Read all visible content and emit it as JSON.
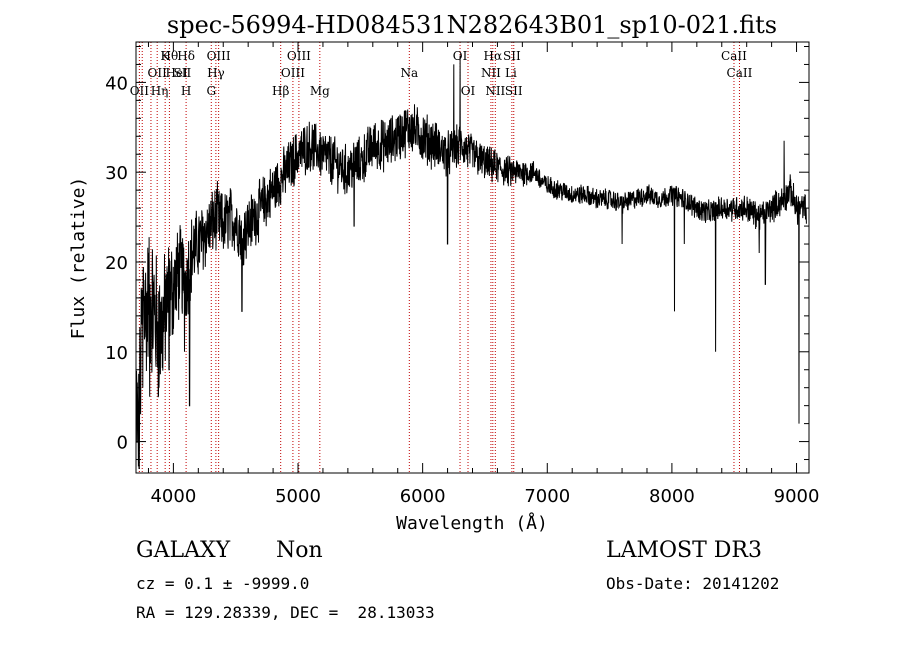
{
  "chart_data": {
    "type": "line",
    "title": "spec-56994-HD084531N282643B01_sp10-021.fits",
    "xlabel": "Wavelength (Å)",
    "ylabel": "Flux (relative)",
    "xlim": [
      3700,
      9100
    ],
    "ylim": [
      -3.5,
      44.5
    ],
    "xticks": [
      4000,
      5000,
      6000,
      7000,
      8000,
      9000
    ],
    "yticks": [
      0,
      10,
      20,
      30,
      40
    ],
    "grid": false,
    "line_color": "#000000",
    "marker_color": "#c00000",
    "anchors": [
      [
        3700,
        5
      ],
      [
        3720,
        0
      ],
      [
        3740,
        10
      ],
      [
        3760,
        18
      ],
      [
        3780,
        14
      ],
      [
        3800,
        16
      ],
      [
        3840,
        15
      ],
      [
        3880,
        12
      ],
      [
        3920,
        13
      ],
      [
        3960,
        16
      ],
      [
        4000,
        17
      ],
      [
        4050,
        19
      ],
      [
        4100,
        18
      ],
      [
        4150,
        21
      ],
      [
        4200,
        22
      ],
      [
        4250,
        23
      ],
      [
        4300,
        24
      ],
      [
        4350,
        25
      ],
      [
        4400,
        24
      ],
      [
        4450,
        25
      ],
      [
        4500,
        24.5
      ],
      [
        4550,
        23
      ],
      [
        4600,
        24
      ],
      [
        4650,
        25
      ],
      [
        4700,
        26
      ],
      [
        4750,
        27
      ],
      [
        4800,
        28
      ],
      [
        4850,
        29
      ],
      [
        4900,
        30
      ],
      [
        4950,
        31
      ],
      [
        5000,
        32
      ],
      [
        5100,
        33
      ],
      [
        5200,
        32
      ],
      [
        5300,
        31
      ],
      [
        5400,
        30
      ],
      [
        5450,
        31
      ],
      [
        5500,
        31
      ],
      [
        5600,
        33
      ],
      [
        5700,
        33
      ],
      [
        5800,
        34
      ],
      [
        5900,
        35
      ],
      [
        6000,
        34
      ],
      [
        6100,
        33
      ],
      [
        6200,
        32
      ],
      [
        6300,
        33
      ],
      [
        6400,
        32
      ],
      [
        6500,
        31
      ],
      [
        6600,
        30.5
      ],
      [
        6700,
        30
      ],
      [
        6800,
        30
      ],
      [
        6900,
        30
      ],
      [
        6950,
        29
      ],
      [
        7000,
        28.5
      ],
      [
        7100,
        28
      ],
      [
        7200,
        27.5
      ],
      [
        7300,
        27.5
      ],
      [
        7400,
        27
      ],
      [
        7500,
        27
      ],
      [
        7600,
        26.5
      ],
      [
        7700,
        27
      ],
      [
        7800,
        27.5
      ],
      [
        7900,
        27
      ],
      [
        8000,
        27.5
      ],
      [
        8100,
        27
      ],
      [
        8200,
        26
      ],
      [
        8300,
        25.5
      ],
      [
        8400,
        26
      ],
      [
        8500,
        26
      ],
      [
        8600,
        26
      ],
      [
        8700,
        25
      ],
      [
        8800,
        26
      ],
      [
        8900,
        27
      ],
      [
        8950,
        28
      ],
      [
        9000,
        26
      ]
    ],
    "noise": [
      [
        3700,
        7
      ],
      [
        3900,
        7
      ],
      [
        4000,
        5
      ],
      [
        4200,
        3.5
      ],
      [
        4500,
        3
      ],
      [
        5000,
        2.5
      ],
      [
        6000,
        2.5
      ],
      [
        6700,
        1.5
      ],
      [
        7000,
        1
      ],
      [
        8000,
        1
      ],
      [
        9000,
        1.5
      ]
    ],
    "spikes": [
      [
        3725,
        -3
      ],
      [
        3755,
        6
      ],
      [
        3810,
        5
      ],
      [
        3885,
        6
      ],
      [
        3935,
        9
      ],
      [
        3965,
        8
      ],
      [
        4090,
        10
      ],
      [
        4130,
        4
      ],
      [
        4550,
        14.5
      ],
      [
        5450,
        24
      ],
      [
        6250,
        42
      ],
      [
        6300,
        43
      ],
      [
        6200,
        22
      ],
      [
        7600,
        22
      ],
      [
        8020,
        14.5
      ],
      [
        8100,
        22
      ],
      [
        8350,
        10
      ],
      [
        8700,
        21
      ],
      [
        8750,
        17.5
      ],
      [
        8900,
        33.5
      ],
      [
        9020,
        2
      ]
    ],
    "emission_lines": [
      {
        "x": 3727,
        "label": "OII",
        "row": 2
      },
      {
        "x": 3870,
        "label": "OII",
        "row": 1
      },
      {
        "x": 3889,
        "label": "Hη",
        "row": 2
      },
      {
        "x": 3934,
        "label": "K",
        "row": 0
      },
      {
        "x": 3968,
        "label": "Hθ",
        "row": 0
      },
      {
        "x": 4026,
        "label": "HeI",
        "row": 1
      },
      {
        "x": 4102,
        "label": "Hδ",
        "row": 0
      },
      {
        "x": 4072,
        "label": "SII",
        "row": 1
      },
      {
        "x": 4102,
        "label": "H",
        "row": 2
      },
      {
        "x": 4341,
        "label": "Hγ",
        "row": 1
      },
      {
        "x": 4363,
        "label": "OIII",
        "row": 0
      },
      {
        "x": 4304,
        "label": "G",
        "row": 2
      },
      {
        "x": 4861,
        "label": "Hβ",
        "row": 2
      },
      {
        "x": 4959,
        "label": "OIII",
        "row": 1
      },
      {
        "x": 5007,
        "label": "OIII",
        "row": 0
      },
      {
        "x": 5175,
        "label": "Mg",
        "row": 2
      },
      {
        "x": 5893,
        "label": "Na",
        "row": 1
      },
      {
        "x": 6300,
        "label": "OI",
        "row": 0
      },
      {
        "x": 6364,
        "label": "OI",
        "row": 2
      },
      {
        "x": 6563,
        "label": "Hα",
        "row": 0
      },
      {
        "x": 6548,
        "label": "NII",
        "row": 1
      },
      {
        "x": 6583,
        "label": "NII",
        "row": 2
      },
      {
        "x": 6716,
        "label": "SII",
        "row": 0
      },
      {
        "x": 6708,
        "label": "Li",
        "row": 1
      },
      {
        "x": 6731,
        "label": "SII",
        "row": 2
      },
      {
        "x": 8498,
        "label": "CaII",
        "row": 0
      },
      {
        "x": 8542,
        "label": "CaII",
        "row": 1
      }
    ],
    "marker_x": [
      3727,
      3750,
      3820,
      3870,
      3934,
      3968,
      4102,
      4304,
      4341,
      4363,
      4861,
      4959,
      5007,
      5175,
      5893,
      6300,
      6364,
      6548,
      6563,
      6583,
      6716,
      6731,
      8498,
      8542
    ]
  },
  "info": {
    "class": "GALAXY",
    "subclass": "Non",
    "survey": "LAMOST DR3",
    "cz": "cz = 0.1 ± -9999.0",
    "obs_date": "Obs-Date: 20141202",
    "radec": "RA = 129.28339, DEC =  28.13033"
  }
}
